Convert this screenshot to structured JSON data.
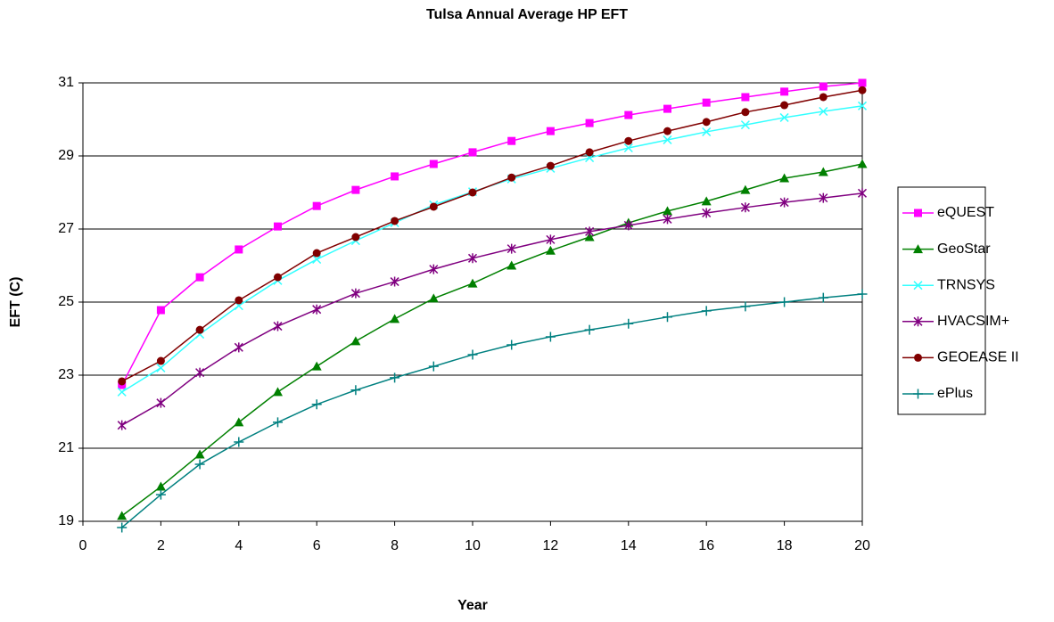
{
  "chart_data": {
    "type": "line",
    "title": "Tulsa Annual Average HP EFT",
    "x_label": "Year",
    "y_label": "EFT (C)",
    "x": [
      1,
      2,
      3,
      4,
      5,
      6,
      7,
      8,
      9,
      10,
      11,
      12,
      13,
      14,
      15,
      16,
      17,
      18,
      19,
      20
    ],
    "series": [
      {
        "name": "eQUEST",
        "color": "#ff00ff",
        "marker": "square",
        "values": [
          22.73,
          24.78,
          25.68,
          26.44,
          27.07,
          27.63,
          28.07,
          28.44,
          28.78,
          29.1,
          29.41,
          29.68,
          29.9,
          30.12,
          30.29,
          30.46,
          30.61,
          30.76,
          30.9,
          31.0
        ]
      },
      {
        "name": "GeoStar",
        "color": "#008000",
        "marker": "triangle",
        "values": [
          19.15,
          19.95,
          20.83,
          21.71,
          22.54,
          23.24,
          23.93,
          24.54,
          25.1,
          25.51,
          26.0,
          26.41,
          26.78,
          27.17,
          27.49,
          27.76,
          28.07,
          28.39,
          28.56,
          28.78
        ]
      },
      {
        "name": "TRNSYS",
        "color": "#33ffff",
        "marker": "x",
        "values": [
          22.54,
          23.2,
          24.12,
          24.9,
          25.59,
          26.17,
          26.68,
          27.17,
          27.66,
          28.02,
          28.37,
          28.66,
          28.95,
          29.22,
          29.44,
          29.66,
          29.85,
          30.05,
          30.22,
          30.37
        ]
      },
      {
        "name": "HVACSIM+",
        "color": "#800080",
        "marker": "asterisk",
        "values": [
          21.63,
          22.24,
          23.07,
          23.76,
          24.34,
          24.8,
          25.24,
          25.56,
          25.9,
          26.2,
          26.46,
          26.71,
          26.93,
          27.1,
          27.27,
          27.44,
          27.59,
          27.73,
          27.85,
          27.98
        ]
      },
      {
        "name": "GEOEASE II",
        "color": "#800000",
        "marker": "circle",
        "values": [
          22.83,
          23.39,
          24.24,
          25.05,
          25.68,
          26.34,
          26.78,
          27.22,
          27.61,
          28.0,
          28.41,
          28.73,
          29.1,
          29.41,
          29.68,
          29.93,
          30.2,
          30.39,
          30.61,
          30.8
        ]
      },
      {
        "name": "ePlus",
        "color": "#008080",
        "marker": "plus",
        "values": [
          18.83,
          19.73,
          20.56,
          21.17,
          21.71,
          22.2,
          22.59,
          22.93,
          23.24,
          23.56,
          23.83,
          24.05,
          24.24,
          24.41,
          24.59,
          24.76,
          24.88,
          25.0,
          25.12,
          25.22
        ]
      }
    ],
    "xlim": [
      0,
      20
    ],
    "xticks": [
      0,
      2,
      4,
      6,
      8,
      10,
      12,
      14,
      16,
      18,
      20
    ],
    "ylim": [
      19,
      31
    ],
    "yticks": [
      19,
      21,
      23,
      25,
      27,
      29,
      31
    ],
    "grid": true,
    "legend": "right"
  }
}
